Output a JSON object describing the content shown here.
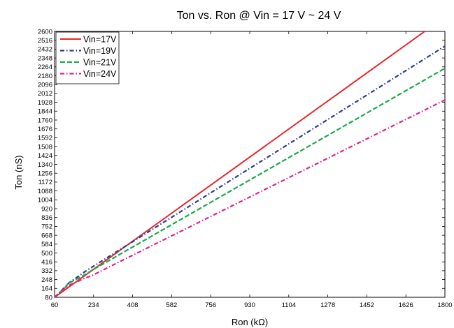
{
  "chart_data": {
    "type": "line",
    "title": "Ton vs. Ron @ Vin = 17 V ~ 24 V",
    "xlabel": "Ron (kΩ)",
    "ylabel": "Ton (nS)",
    "xlim": [
      60,
      1800
    ],
    "ylim": [
      80,
      2600
    ],
    "xticks": [
      60,
      234,
      408,
      582,
      756,
      930,
      1104,
      1278,
      1452,
      1626,
      1800
    ],
    "xtick_labels": [
      "60",
      "234",
      "408",
      "582",
      "756",
      "930",
      "1104",
      "1278",
      "1452",
      "1626",
      "1800"
    ],
    "yticks": [
      80,
      164,
      248,
      332,
      416,
      500,
      584,
      668,
      752,
      836,
      920,
      1004,
      1088,
      1172,
      1256,
      1340,
      1424,
      1508,
      1592,
      1676,
      1760,
      1844,
      1928,
      2012,
      2096,
      2180,
      2264,
      2348,
      2432,
      2516,
      2600
    ],
    "grid": false,
    "legend_position": "top-left",
    "series": [
      {
        "name": "Vin=17V",
        "color": "#e8262c",
        "style": "solid",
        "x": [
          60,
          1710
        ],
        "y": [
          80,
          2600
        ]
      },
      {
        "name": "Vin=19V",
        "color": "#2b3a98",
        "style": "dash-dot",
        "x": [
          60,
          110,
          120,
          200,
          230,
          1800
        ],
        "y": [
          80,
          185,
          210,
          330,
          370,
          2460
        ]
      },
      {
        "name": "Vin=21V",
        "color": "#1aaa4a",
        "style": "dashed",
        "x": [
          60,
          110,
          120,
          200,
          230,
          1800
        ],
        "y": [
          80,
          180,
          210,
          300,
          340,
          2250
        ]
      },
      {
        "name": "Vin=24V",
        "color": "#e0208e",
        "style": "dash-dot",
        "x": [
          60,
          110,
          120,
          200,
          230,
          1800
        ],
        "y": [
          80,
          170,
          190,
          265,
          290,
          1950
        ]
      }
    ]
  }
}
